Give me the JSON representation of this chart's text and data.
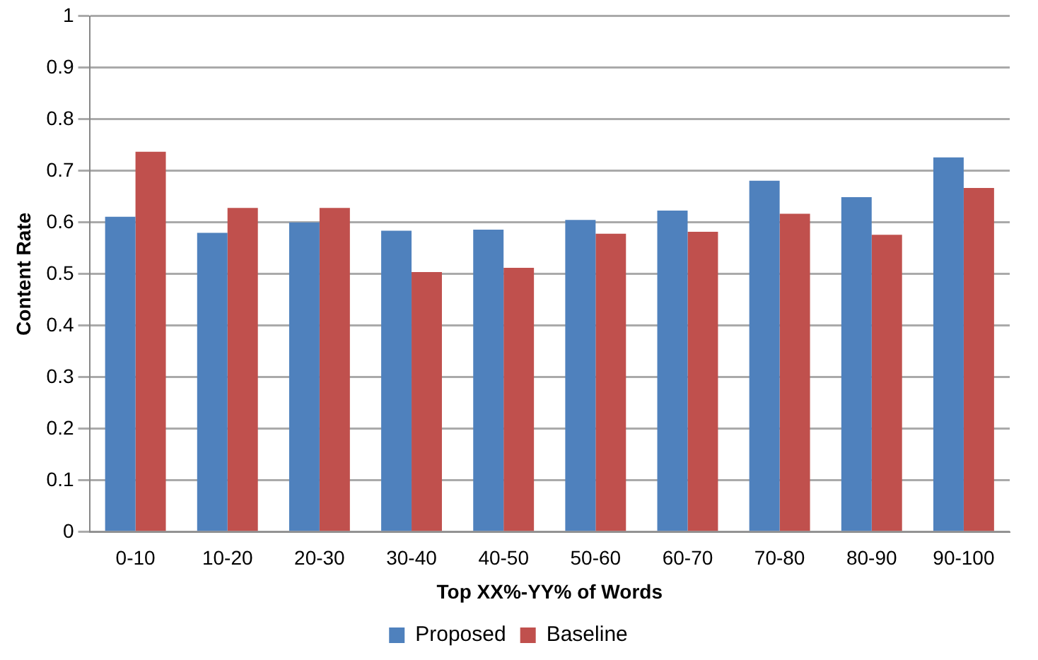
{
  "chart_data": {
    "type": "bar",
    "xlabel": "Top XX%-YY% of Words",
    "ylabel": "Content Rate",
    "categories": [
      "0-10",
      "10-20",
      "20-30",
      "30-40",
      "40-50",
      "50-60",
      "60-70",
      "70-80",
      "80-90",
      "90-100"
    ],
    "series": [
      {
        "name": "Proposed",
        "color": "#4f81bd",
        "values": [
          0.611,
          0.58,
          0.6,
          0.584,
          0.586,
          0.605,
          0.623,
          0.681,
          0.649,
          0.726
        ]
      },
      {
        "name": "Baseline",
        "color": "#c0504d",
        "values": [
          0.737,
          0.628,
          0.628,
          0.504,
          0.512,
          0.578,
          0.582,
          0.617,
          0.576,
          0.667
        ]
      }
    ],
    "ylim": [
      0,
      1
    ],
    "yticks": [
      0,
      0.1,
      0.2,
      0.3,
      0.4,
      0.5,
      0.6,
      0.7,
      0.8,
      0.9,
      1
    ],
    "grid": "y",
    "legend": "bottom"
  }
}
